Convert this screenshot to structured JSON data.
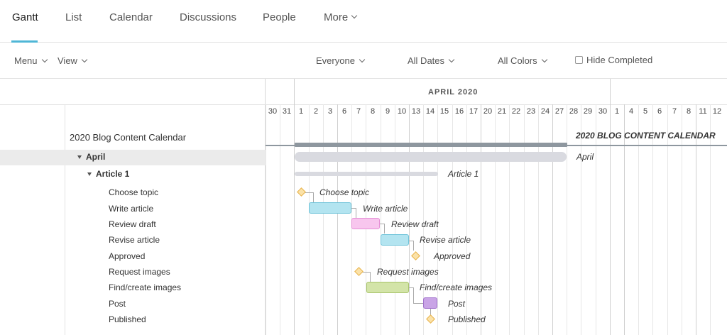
{
  "tabs": [
    {
      "label": "Gantt",
      "active": true
    },
    {
      "label": "List"
    },
    {
      "label": "Calendar"
    },
    {
      "label": "Discussions"
    },
    {
      "label": "People"
    },
    {
      "label": "More"
    }
  ],
  "toolbar": {
    "menu": "Menu",
    "view": "View",
    "everyone": "Everyone",
    "all_dates": "All Dates",
    "all_colors": "All Colors",
    "hide_completed": "Hide Completed"
  },
  "gantt": {
    "month": "APRIL 2020",
    "days": [
      "30",
      "31",
      "1",
      "2",
      "3",
      "6",
      "7",
      "8",
      "9",
      "10",
      "13",
      "14",
      "15",
      "16",
      "17",
      "20",
      "21",
      "22",
      "23",
      "24",
      "27",
      "28",
      "29",
      "30",
      "1",
      "4",
      "5",
      "6",
      "7",
      "8",
      "11",
      "12"
    ],
    "project": "2020 Blog Content Calendar",
    "project_chart_label": "2020 BLOG CONTENT CALENDAR",
    "group": "April",
    "subgroup": "Article 1",
    "tasks": [
      "Choose topic",
      "Write article",
      "Review draft",
      "Revise article",
      "Approved",
      "Request images",
      "Find/create images",
      "Post",
      "Published"
    ]
  },
  "colors": {
    "accent": "#4fb6d6",
    "project_bar": "#8e979f",
    "group_bar": "#d9dae0",
    "write": "#b3e4f0",
    "review": "#f8c6ee",
    "images": "#d3e4a8",
    "post": "#c9a4e6",
    "milestone": "#fbe2a8"
  }
}
